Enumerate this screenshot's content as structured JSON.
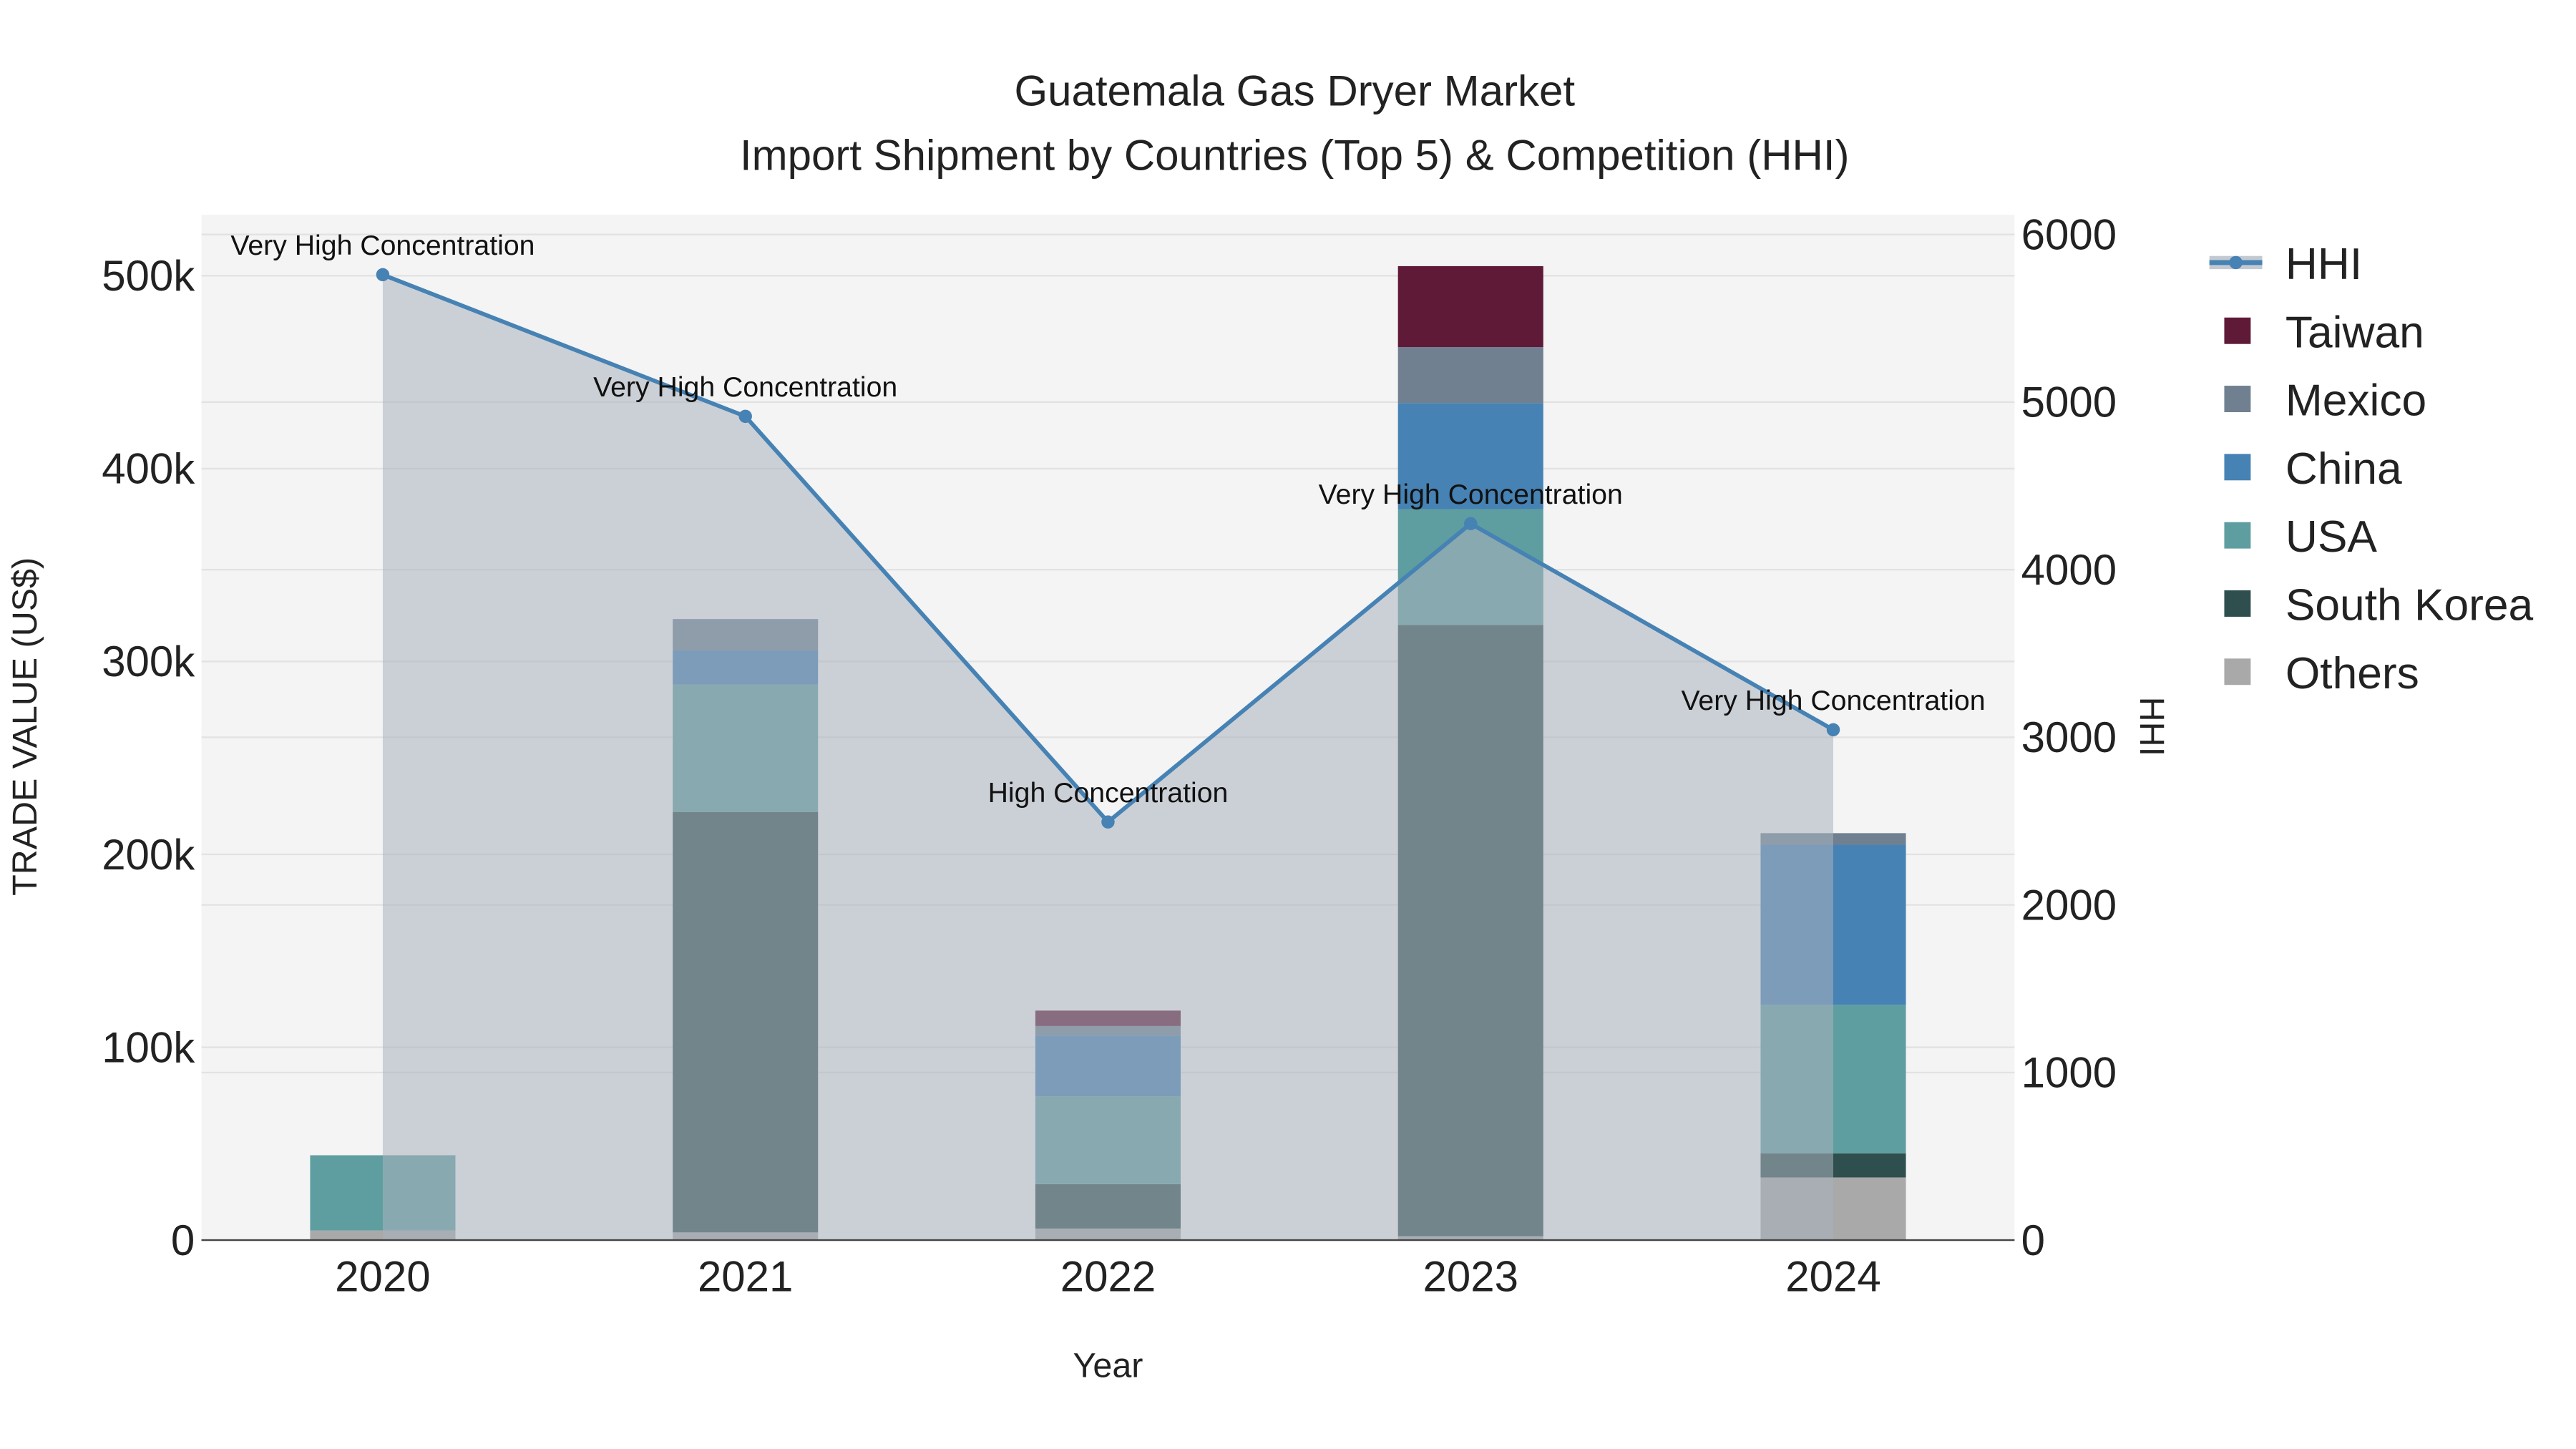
{
  "chart_data": {
    "type": "bar",
    "title": "Guatemala Gas Dryer Market",
    "subtitle": "Import Shipment by Countries (Top 5) & Competition (HHI)",
    "xlabel": "Year",
    "ylabel": "TRADE VALUE (US$)",
    "y2label": "HHI",
    "categories": [
      "2020",
      "2021",
      "2022",
      "2023",
      "2024"
    ],
    "ylim": [
      0,
      530000
    ],
    "y2lim": [
      0,
      6200
    ],
    "yticks": [
      0,
      100000,
      200000,
      300000,
      400000,
      500000
    ],
    "ytick_labels": [
      "0",
      "100k",
      "200k",
      "300k",
      "400k",
      "500k"
    ],
    "y2ticks": [
      0,
      1000,
      2000,
      3000,
      4000,
      5000,
      6000
    ],
    "y2tick_labels": [
      "0",
      "1000",
      "2000",
      "3000",
      "4000",
      "5000",
      "6000"
    ],
    "series": [
      {
        "name": "Others",
        "color": "#a9a9a9",
        "values": [
          5000,
          4000,
          6000,
          2000,
          32500
        ]
      },
      {
        "name": "South Korea",
        "color": "#2f4f4f",
        "values": [
          0,
          218000,
          23000,
          317000,
          12500
        ]
      },
      {
        "name": "USA",
        "color": "#5f9ea0",
        "values": [
          39000,
          66000,
          45500,
          60000,
          77000
        ]
      },
      {
        "name": "China",
        "color": "#4682b4",
        "values": [
          0,
          18000,
          31500,
          55000,
          83000
        ]
      },
      {
        "name": "Mexico",
        "color": "#708090",
        "values": [
          0,
          16000,
          5000,
          29000,
          6000
        ]
      },
      {
        "name": "Taiwan",
        "color": "#5f1a37",
        "values": [
          0,
          0,
          8000,
          42000,
          0
        ]
      }
    ],
    "hhi": {
      "name": "HHI",
      "color": "#4682b4",
      "values": [
        5760,
        4915,
        2495,
        4275,
        3045
      ],
      "annotations": [
        "Very High Concentration",
        "Very High Concentration",
        "High Concentration",
        "Very High Concentration",
        "Very High Concentration"
      ]
    },
    "legend": {
      "placement": "right",
      "entries": [
        "HHI",
        "Taiwan",
        "Mexico",
        "China",
        "USA",
        "South Korea",
        "Others"
      ]
    },
    "grid": true
  }
}
